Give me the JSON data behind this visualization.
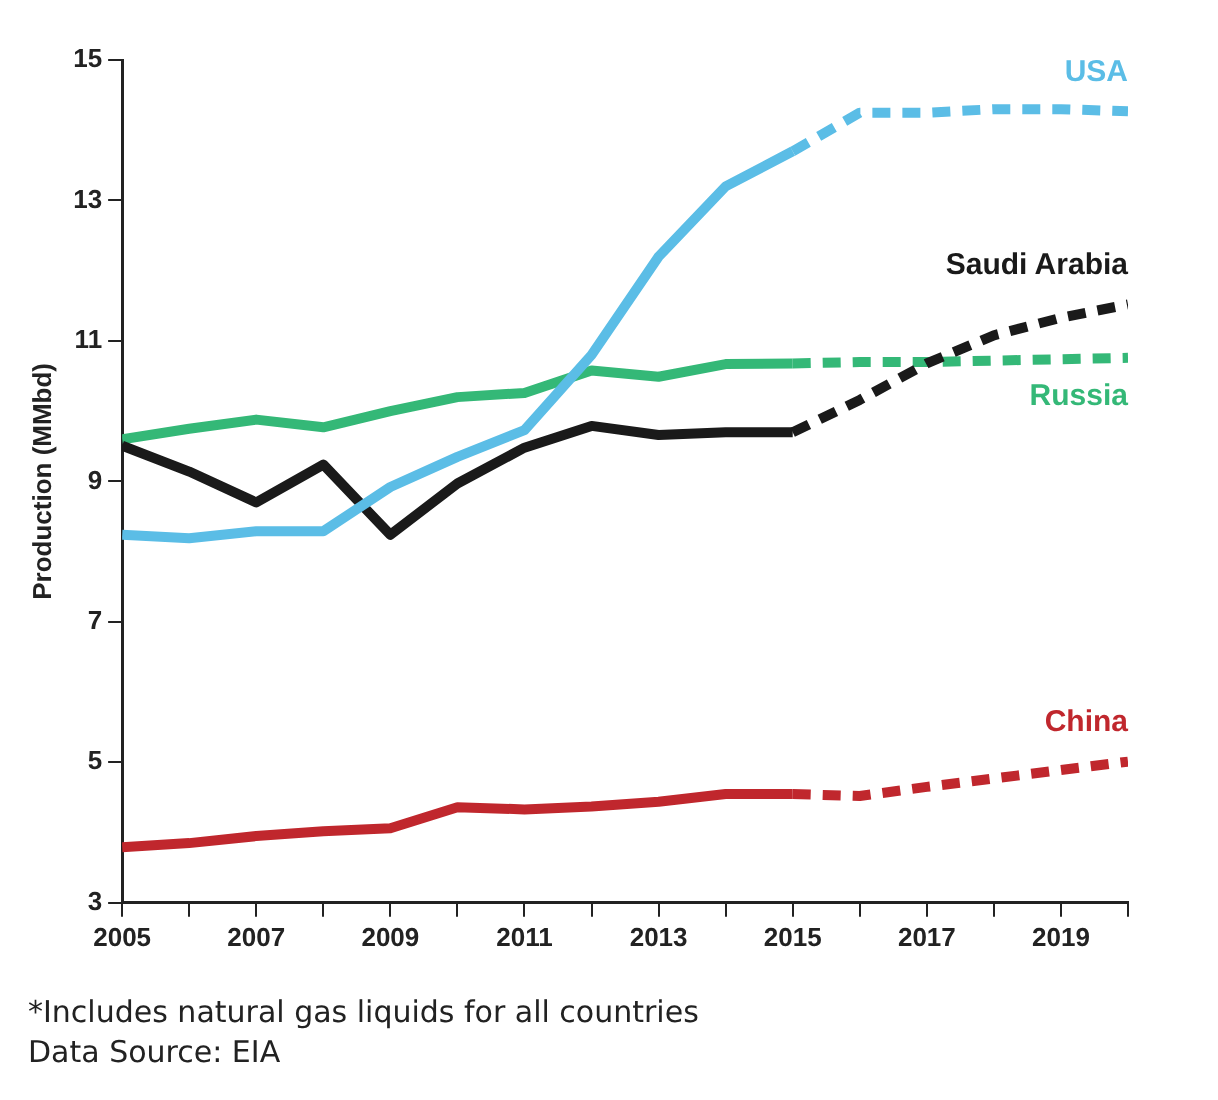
{
  "chart_data": {
    "type": "line",
    "ylabel": "Production (MMbd)",
    "x": [
      2005,
      2006,
      2007,
      2008,
      2009,
      2010,
      2011,
      2012,
      2013,
      2014,
      2015,
      2016,
      2017,
      2018,
      2019,
      2020
    ],
    "xlim": [
      2005,
      2020
    ],
    "xticks": [
      2005,
      {
        "value": 2006,
        "label": null
      },
      2007,
      {
        "value": 2008,
        "label": null
      },
      2009,
      {
        "value": 2010,
        "label": null
      },
      2011,
      {
        "value": 2012,
        "label": null
      },
      2013,
      {
        "value": 2014,
        "label": null
      },
      2015,
      {
        "value": 2016,
        "label": null
      },
      2017,
      {
        "value": 2018,
        "label": null
      },
      2019,
      {
        "value": 2020,
        "label": null
      }
    ],
    "ylim": [
      3,
      15
    ],
    "yticks": [
      3,
      5,
      7,
      9,
      11,
      13,
      15
    ],
    "marker": "none",
    "series": [
      {
        "name": "USA",
        "color": "#5bbde6",
        "line_style": "solid",
        "values": [
          8.24,
          8.19,
          8.29,
          8.29,
          8.92,
          9.35,
          9.73,
          10.8,
          12.2,
          13.2,
          13.7,
          null,
          null,
          null,
          null,
          null
        ]
      },
      {
        "color": "#5bbde6",
        "line_style": "dashed",
        "values": [
          null,
          null,
          null,
          null,
          null,
          null,
          null,
          null,
          null,
          null,
          13.7,
          14.25,
          14.25,
          14.3,
          14.3,
          14.27
        ]
      },
      {
        "name": "Saudi Arabia",
        "color": "#1a1a1a",
        "line_style": "solid",
        "values": [
          9.51,
          9.14,
          8.7,
          9.24,
          8.24,
          8.97,
          9.48,
          9.79,
          9.66,
          9.7,
          9.7,
          null,
          null,
          null,
          null,
          null
        ]
      },
      {
        "color": "#1a1a1a",
        "line_style": "dashed",
        "values": [
          null,
          null,
          null,
          null,
          null,
          null,
          null,
          null,
          null,
          null,
          9.7,
          10.16,
          10.68,
          11.08,
          11.33,
          11.52
        ]
      },
      {
        "name": "Russia",
        "color": "#34b877",
        "line_style": "solid",
        "values": [
          9.6,
          9.75,
          9.88,
          9.77,
          10.0,
          10.2,
          10.26,
          10.58,
          10.49,
          10.67,
          10.68,
          null,
          null,
          null,
          null,
          null
        ]
      },
      {
        "color": "#34b877",
        "line_style": "dashed",
        "values": [
          null,
          null,
          null,
          null,
          null,
          null,
          null,
          null,
          null,
          null,
          10.68,
          10.7,
          10.7,
          10.72,
          10.74,
          10.76
        ]
      },
      {
        "name": "China",
        "color": "#c0272d",
        "line_style": "solid",
        "values": [
          3.79,
          3.85,
          3.95,
          4.02,
          4.06,
          4.36,
          4.33,
          4.37,
          4.44,
          4.55,
          4.55,
          null,
          null,
          null,
          null,
          null
        ]
      },
      {
        "color": "#c0272d",
        "line_style": "dashed",
        "values": [
          null,
          null,
          null,
          null,
          null,
          null,
          null,
          null,
          null,
          null,
          4.55,
          4.52,
          4.65,
          4.77,
          4.89,
          5.01
        ]
      }
    ],
    "annotations": [
      "*Includes natural gas liquids for all countries",
      "Data Source: EIA"
    ]
  }
}
